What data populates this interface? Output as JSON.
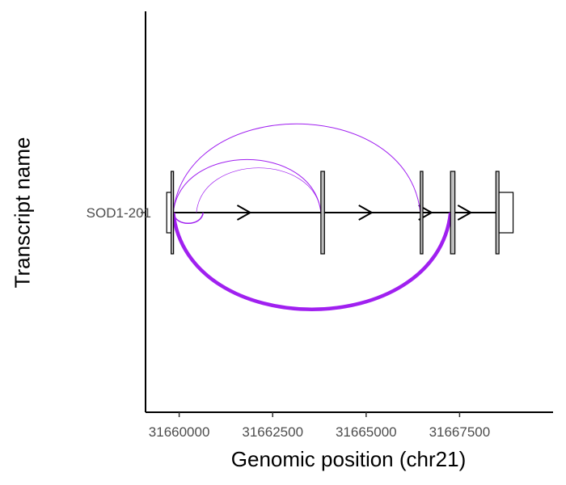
{
  "chart_data": {
    "type": "sashimi",
    "xlabel": "Genomic position (chr21)",
    "ylabel": "Transcript name",
    "xlim": [
      31659100,
      31670000
    ],
    "x_ticks": [
      {
        "value": 31660000,
        "label": "31660000"
      },
      {
        "value": 31662500,
        "label": "31662500"
      },
      {
        "value": 31665000,
        "label": "31665000"
      },
      {
        "value": 31667500,
        "label": "31667500"
      }
    ],
    "transcripts": [
      {
        "name": "SOD1-201",
        "strand": "+",
        "exons": [
          {
            "start": 31659666,
            "end": 31659784,
            "type": "UTR"
          },
          {
            "start": 31659784,
            "end": 31659841,
            "type": "CDS"
          },
          {
            "start": 31663790,
            "end": 31663886,
            "type": "CDS"
          },
          {
            "start": 31666449,
            "end": 31666518,
            "type": "CDS"
          },
          {
            "start": 31667258,
            "end": 31667375,
            "type": "CDS"
          },
          {
            "start": 31668471,
            "end": 31668554,
            "type": "CDS"
          },
          {
            "start": 31668554,
            "end": 31668931,
            "type": "UTR"
          }
        ],
        "direction_arrows": [
          31661900,
          31665150,
          31666750,
          31667800
        ]
      }
    ],
    "junctions": [
      {
        "start": 31659841,
        "end": 31660640,
        "side": "below",
        "weight": 1.5
      },
      {
        "start": 31659841,
        "end": 31663790,
        "side": "above",
        "weight": 1
      },
      {
        "start": 31660460,
        "end": 31663790,
        "side": "above",
        "weight": 0.7
      },
      {
        "start": 31659841,
        "end": 31666449,
        "side": "above",
        "weight": 1
      },
      {
        "start": 31659841,
        "end": 31667258,
        "side": "below",
        "weight": 4.5
      }
    ],
    "junction_color": "#A020F0",
    "exon_fill": {
      "CDS": "#BEBEBE",
      "UTR": "#FFFFFF"
    },
    "grid": false,
    "legend": "none"
  }
}
